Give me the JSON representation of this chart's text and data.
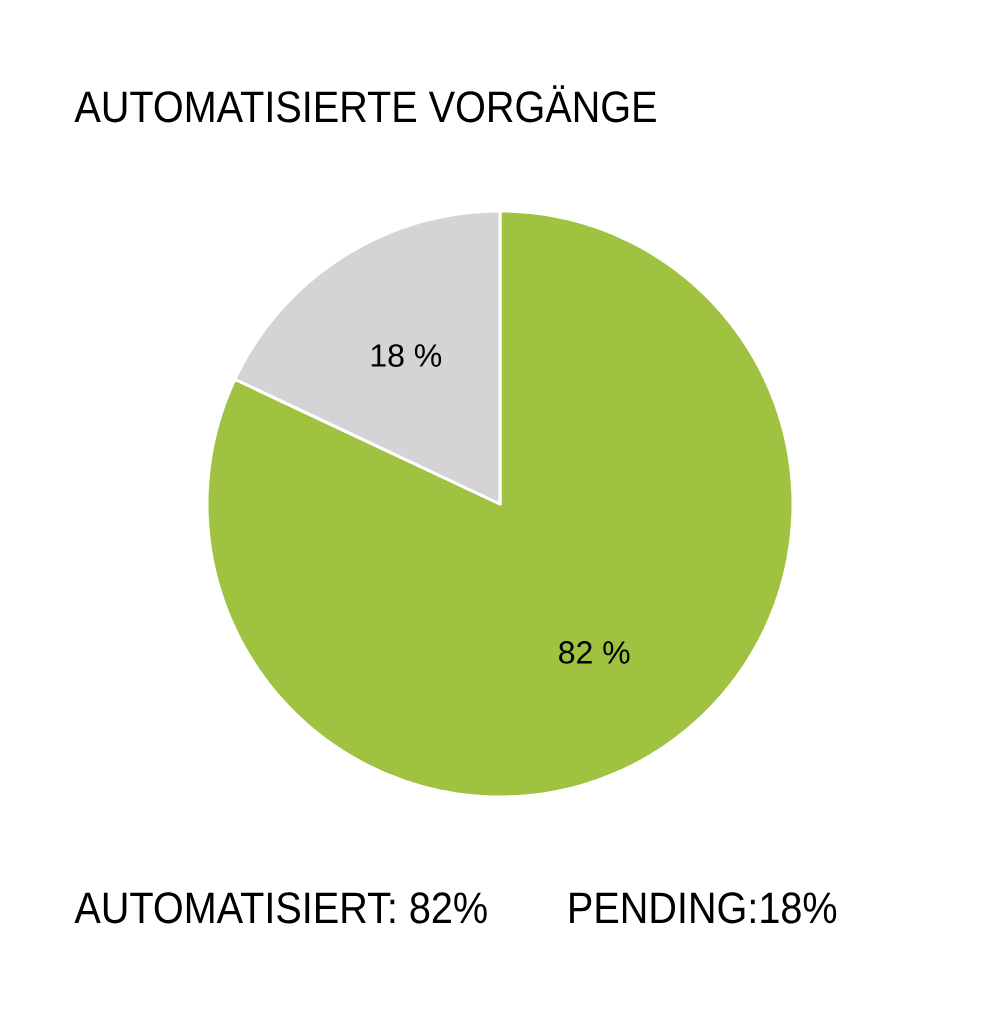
{
  "chart_data": {
    "type": "pie",
    "title": "AUTOMATISIERTE VORGÄNGE",
    "categories": [
      null,
      null
    ],
    "values": [
      82,
      18
    ],
    "colors": [
      "#9fc340",
      "#d5d3d6"
    ],
    "value_labels": [
      "82 %",
      "18 %"
    ],
    "annotations": [
      "AUTOMATISIERT: 82%",
      "PENDING:18%"
    ]
  }
}
